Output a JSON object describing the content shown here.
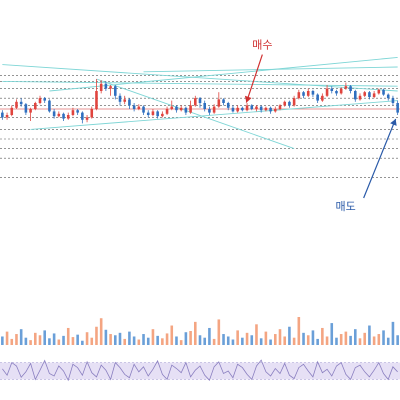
{
  "chart_data": {
    "type": "candlestick",
    "grid": false,
    "colors": {
      "up": "#e0443e",
      "down": "#2f6fbf",
      "trendline": "#7fd6d6",
      "levels": "#555555",
      "signal_line": "#e07070",
      "volume_up": "#f4a582",
      "volume_down": "#6a9fd8",
      "oscillator_line": "#8a7fc0",
      "oscillator_band": "#e6e0f5",
      "buy_annotation": "#d03030",
      "sell_annotation": "#2a5aa8"
    },
    "price_range": [
      0,
      100
    ],
    "candles": [
      [
        52,
        48,
        54,
        46
      ],
      [
        48,
        50,
        52,
        46
      ],
      [
        50,
        56,
        58,
        49
      ],
      [
        56,
        61,
        63,
        55
      ],
      [
        61,
        59,
        64,
        57
      ],
      [
        59,
        52,
        60,
        50
      ],
      [
        52,
        55,
        56,
        45
      ],
      [
        55,
        60,
        61,
        54
      ],
      [
        60,
        64,
        66,
        59
      ],
      [
        64,
        62,
        65,
        60
      ],
      [
        62,
        53,
        63,
        52
      ],
      [
        53,
        49,
        55,
        47
      ],
      [
        49,
        51,
        53,
        48
      ],
      [
        51,
        47,
        52,
        45
      ],
      [
        47,
        50,
        52,
        46
      ],
      [
        50,
        54,
        56,
        49
      ],
      [
        54,
        52,
        55,
        50
      ],
      [
        52,
        46,
        53,
        43
      ],
      [
        46,
        48,
        50,
        44
      ],
      [
        48,
        55,
        57,
        47
      ],
      [
        55,
        70,
        80,
        54
      ],
      [
        70,
        76,
        79,
        68
      ],
      [
        76,
        72,
        78,
        70
      ],
      [
        72,
        74,
        75,
        66
      ],
      [
        74,
        66,
        75,
        63
      ],
      [
        66,
        61,
        68,
        58
      ],
      [
        61,
        63,
        66,
        59
      ],
      [
        63,
        58,
        64,
        55
      ],
      [
        58,
        55,
        60,
        53
      ],
      [
        55,
        57,
        59,
        54
      ],
      [
        57,
        52,
        58,
        50
      ],
      [
        52,
        50,
        54,
        48
      ],
      [
        50,
        53,
        55,
        49
      ],
      [
        53,
        49,
        54,
        47
      ],
      [
        49,
        51,
        53,
        48
      ],
      [
        51,
        55,
        57,
        50
      ],
      [
        55,
        57,
        62,
        54
      ],
      [
        57,
        54,
        58,
        52
      ],
      [
        54,
        56,
        58,
        53
      ],
      [
        56,
        52,
        57,
        50
      ],
      [
        52,
        58,
        62,
        51
      ],
      [
        58,
        64,
        66,
        57
      ],
      [
        64,
        60,
        65,
        56
      ],
      [
        60,
        55,
        62,
        53
      ],
      [
        55,
        52,
        57,
        50
      ],
      [
        52,
        57,
        59,
        51
      ],
      [
        57,
        63,
        69,
        56
      ],
      [
        63,
        60,
        64,
        58
      ],
      [
        60,
        56,
        61,
        54
      ],
      [
        56,
        53,
        58,
        52
      ],
      [
        53,
        56,
        58,
        52
      ],
      [
        56,
        54,
        57,
        53
      ],
      [
        54,
        58,
        60,
        53
      ],
      [
        58,
        55,
        59,
        54
      ],
      [
        55,
        57,
        58,
        53
      ],
      [
        57,
        54,
        58,
        52
      ],
      [
        54,
        56,
        57,
        53
      ],
      [
        56,
        53,
        57,
        51
      ],
      [
        53,
        55,
        57,
        52
      ],
      [
        55,
        58,
        59,
        54
      ],
      [
        58,
        61,
        62,
        57
      ],
      [
        61,
        58,
        62,
        56
      ],
      [
        58,
        64,
        66,
        57
      ],
      [
        64,
        69,
        71,
        63
      ],
      [
        69,
        66,
        70,
        64
      ],
      [
        66,
        70,
        72,
        65
      ],
      [
        70,
        67,
        71,
        65
      ],
      [
        67,
        62,
        68,
        60
      ],
      [
        62,
        66,
        68,
        61
      ],
      [
        66,
        72,
        75,
        65
      ],
      [
        72,
        70,
        74,
        68
      ],
      [
        70,
        68,
        71,
        66
      ],
      [
        68,
        72,
        73,
        67
      ],
      [
        72,
        74,
        77,
        71
      ],
      [
        74,
        70,
        75,
        68
      ],
      [
        70,
        63,
        71,
        61
      ],
      [
        63,
        66,
        68,
        62
      ],
      [
        66,
        69,
        70,
        65
      ],
      [
        69,
        65,
        70,
        63
      ],
      [
        65,
        68,
        70,
        64
      ],
      [
        68,
        71,
        72,
        67
      ],
      [
        71,
        67,
        72,
        66
      ],
      [
        67,
        64,
        68,
        62
      ],
      [
        64,
        60,
        66,
        58
      ],
      [
        60,
        52,
        62,
        50
      ]
    ],
    "volume": [
      14,
      22,
      10,
      18,
      26,
      12,
      8,
      20,
      16,
      24,
      11,
      19,
      9,
      15,
      28,
      13,
      17,
      7,
      21,
      12,
      30,
      44,
      25,
      18,
      16,
      20,
      10,
      22,
      14,
      9,
      18,
      12,
      26,
      15,
      11,
      19,
      32,
      14,
      8,
      21,
      23,
      38,
      16,
      12,
      28,
      10,
      42,
      18,
      14,
      9,
      24,
      12,
      20,
      16,
      34,
      11,
      22,
      9,
      18,
      26,
      14,
      30,
      12,
      46,
      20,
      16,
      24,
      10,
      28,
      14,
      36,
      12,
      18,
      22,
      15,
      26,
      11,
      20,
      32,
      14,
      18,
      24,
      12,
      38,
      16
    ],
    "oscillator": [
      55,
      40,
      70,
      62,
      35,
      48,
      68,
      30,
      52,
      75,
      44,
      38,
      62,
      50,
      28,
      66,
      58,
      40,
      72,
      46,
      36,
      64,
      52,
      30,
      70,
      58,
      42,
      34,
      66,
      48,
      60,
      38,
      54,
      74,
      42,
      30,
      64,
      56,
      46,
      70,
      36,
      52,
      62,
      40,
      28,
      60,
      72,
      44,
      50,
      34,
      66,
      58,
      42,
      30,
      62,
      76,
      48,
      38,
      56,
      44,
      68,
      40,
      32,
      58,
      66,
      50,
      36,
      72,
      46,
      54,
      38,
      62,
      70,
      42,
      30,
      58,
      64,
      48,
      36,
      52,
      70,
      44,
      30,
      60,
      48
    ],
    "levels": [
      83,
      78,
      72,
      64,
      58,
      48,
      38,
      30,
      22,
      14,
      -2
    ],
    "signal_level": 55,
    "trendlines": [
      [
        0,
        92,
        84,
        70
      ],
      [
        0,
        78,
        84,
        74
      ],
      [
        10,
        70,
        84,
        98
      ],
      [
        6,
        38,
        84,
        62
      ],
      [
        20,
        80,
        62,
        22
      ],
      [
        30,
        86,
        84,
        90
      ]
    ],
    "annotations": [
      {
        "text": "매수",
        "type": "buy",
        "candle": 51
      },
      {
        "text": "매도",
        "type": "sell",
        "candle": 84
      }
    ]
  }
}
